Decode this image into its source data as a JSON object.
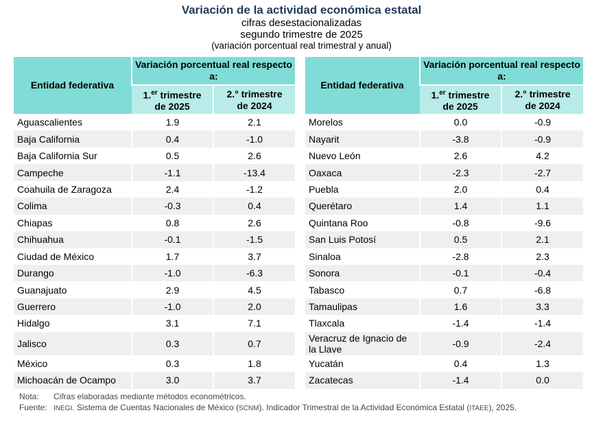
{
  "title": "Variación de la actividad económica estatal",
  "subtitle1": "cifras desestacionalizadas",
  "subtitle2": "segundo trimestre de 2025",
  "subtitle3": "(variación porcentual real trimestral y anual)",
  "headers": {
    "entity": "Entidad federativa",
    "group": "Variación porcentual real respecto a:",
    "c1a": "1.",
    "c1sup": "er",
    "c1b": " trimestre",
    "c1c": "de 2025",
    "c2a": "2.° trimestre",
    "c2b": "de 2024"
  },
  "left": [
    [
      "Aguascalientes",
      "1.9",
      "2.1"
    ],
    [
      "Baja California",
      "0.4",
      "-1.0"
    ],
    [
      "Baja California Sur",
      "0.5",
      "2.6"
    ],
    [
      "Campeche",
      "-1.1",
      "-13.4"
    ],
    [
      "Coahuila de Zaragoza",
      "2.4",
      "-1.2"
    ],
    [
      "Colima",
      "-0.3",
      "0.4"
    ],
    [
      "Chiapas",
      "0.8",
      "2.6"
    ],
    [
      "Chihuahua",
      "-0.1",
      "-1.5"
    ],
    [
      "Ciudad de México",
      "1.7",
      "3.7"
    ],
    [
      "Durango",
      "-1.0",
      "-6.3"
    ],
    [
      "Guanajuato",
      "2.9",
      "4.5"
    ],
    [
      "Guerrero",
      "-1.0",
      "2.0"
    ],
    [
      "Hidalgo",
      "3.1",
      "7.1"
    ],
    [
      "Jalisco",
      "0.3",
      "0.7"
    ],
    [
      "México",
      "0.3",
      "1.8"
    ],
    [
      "Michoacán de Ocampo",
      "3.0",
      "3.7"
    ]
  ],
  "right": [
    [
      "Morelos",
      "0.0",
      "-0.9"
    ],
    [
      "Nayarit",
      "-3.8",
      "-0.9"
    ],
    [
      "Nuevo León",
      "2.6",
      "4.2"
    ],
    [
      "Oaxaca",
      "-2.3",
      "-2.7"
    ],
    [
      "Puebla",
      "2.0",
      "0.4"
    ],
    [
      "Querétaro",
      "1.4",
      "1.1"
    ],
    [
      "Quintana Roo",
      "-0.8",
      "-9.6"
    ],
    [
      "San Luis Potosí",
      "0.5",
      "2.1"
    ],
    [
      "Sinaloa",
      "-2.8",
      "2.3"
    ],
    [
      "Sonora",
      "-0.1",
      "-0.4"
    ],
    [
      "Tabasco",
      "0.7",
      "-6.8"
    ],
    [
      "Tamaulipas",
      "1.6",
      "3.3"
    ],
    [
      "Tlaxcala",
      "-1.4",
      "-1.4"
    ],
    [
      "Veracruz de Ignacio de la Llave",
      "-0.9",
      "-2.4"
    ],
    [
      "Yucatán",
      "0.4",
      "1.3"
    ],
    [
      "Zacatecas",
      "-1.4",
      "0.0"
    ]
  ],
  "notes": {
    "nota_label": "Nota:",
    "nota": "Cifras elaboradas mediante métodos econométricos.",
    "fuente_label": "Fuente:",
    "f1": "INEGI",
    "f2": ". Sistema de Cuentas Nacionales de México (",
    "f3": "SCNM",
    "f4": "). Indicador Trimestral de la Actividad Económica Estatal (",
    "f5": "ITAEE",
    "f6": "), 2025."
  },
  "colors": {
    "header": "#80dcd6",
    "subheader": "#b9ebe8",
    "title": "#1f3a5a",
    "row_alt": "#efefef"
  }
}
